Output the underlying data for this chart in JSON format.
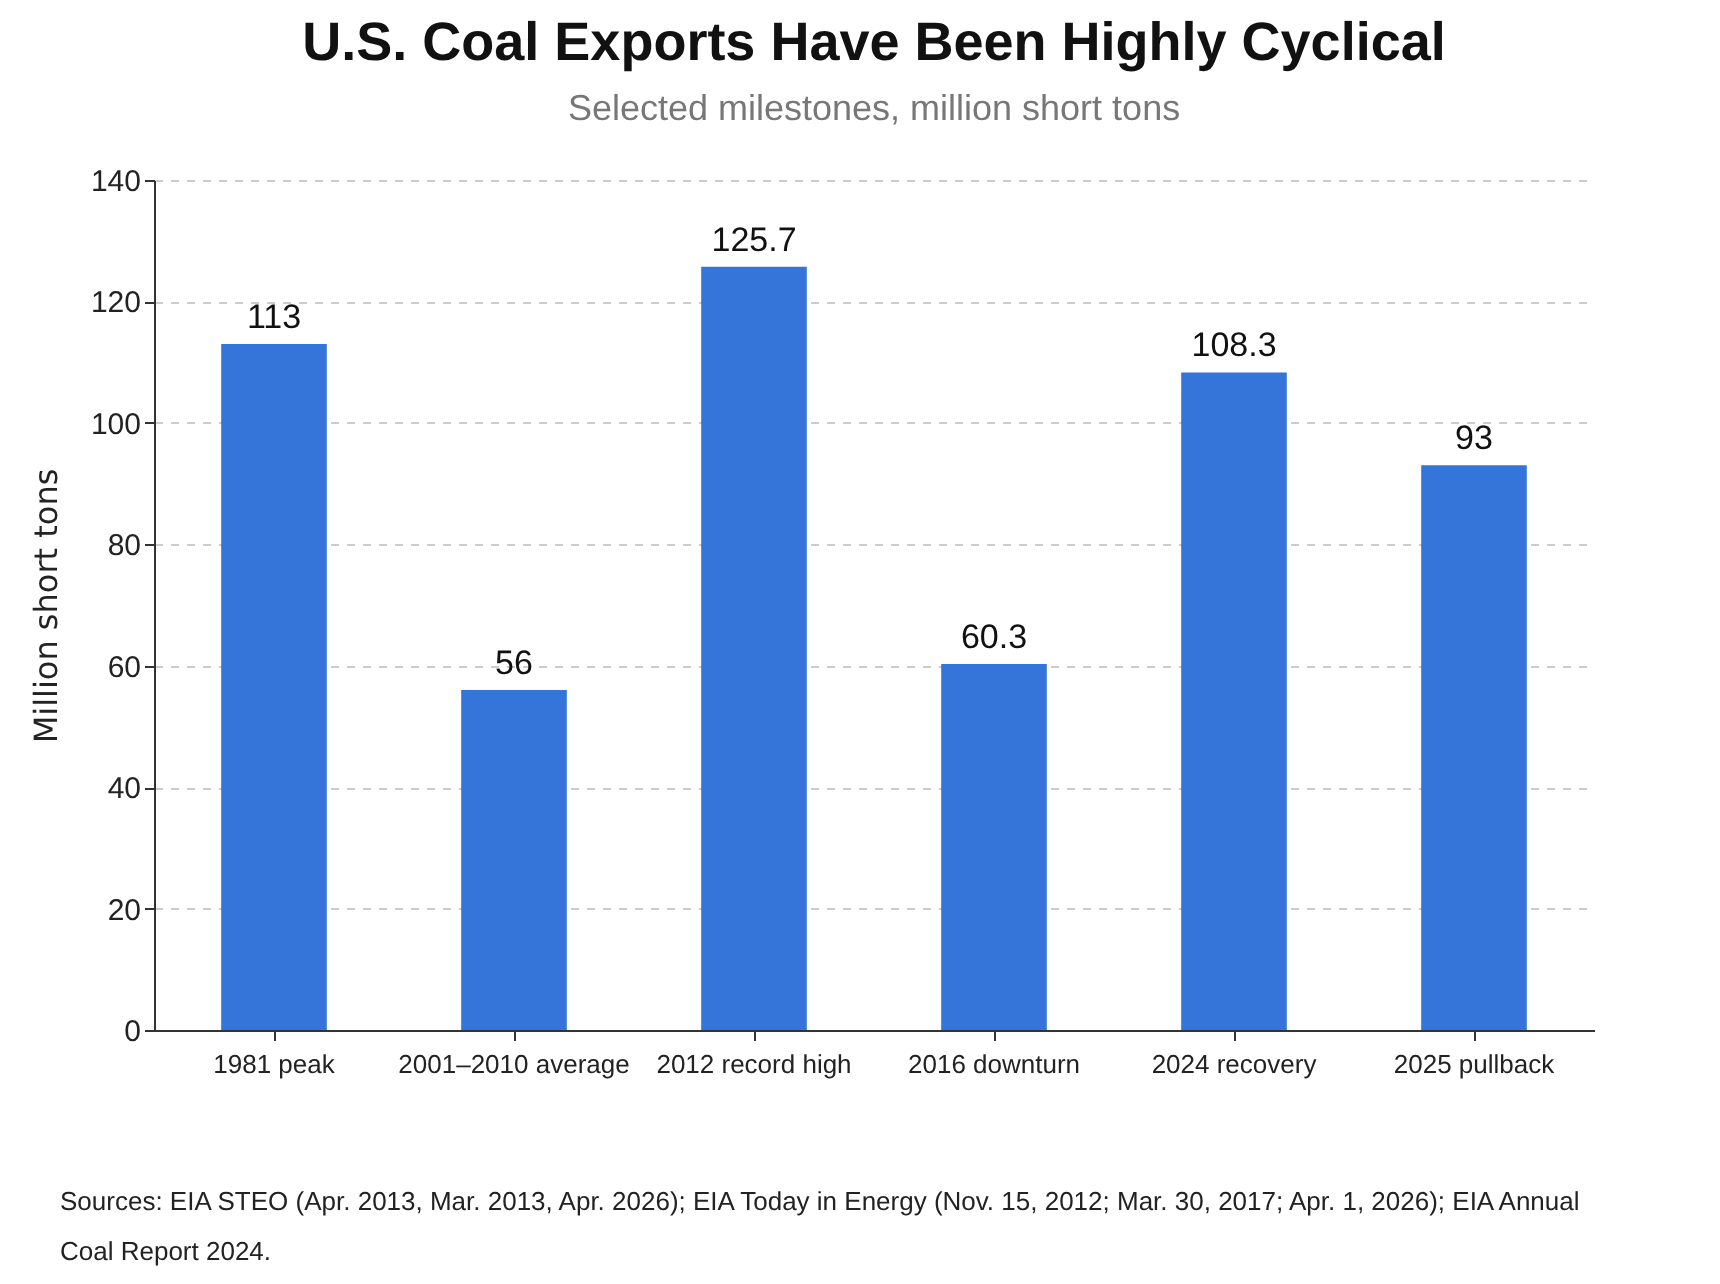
{
  "chart_data": {
    "type": "bar",
    "title": "U.S. Coal Exports Have Been Highly Cyclical",
    "subtitle": "Selected milestones, million short tons",
    "ylabel": "Million short tons",
    "categories": [
      "1981 peak",
      "2001–2010 average",
      "2012 record high",
      "2016 downturn",
      "2024 recovery",
      "2025 pullback"
    ],
    "values": [
      113,
      56,
      125.7,
      60.3,
      108.3,
      93
    ],
    "color": "#3574d8",
    "ylim": [
      0,
      140
    ],
    "yticks": [
      0,
      20,
      40,
      60,
      80,
      100,
      120,
      140
    ],
    "grid": "y",
    "data_labels": true,
    "annotations": [
      "Sources: EIA STEO (Apr. 2013, Mar. 2013, Apr. 2026); EIA Today in Energy (Nov. 15, 2012; Mar. 30, 2017; Apr. 1, 2026); EIA Annual Coal Report 2024."
    ]
  }
}
